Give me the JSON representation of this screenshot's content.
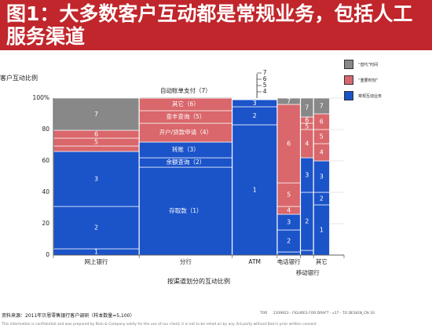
{
  "title": "图1：大多数客户互动都是常规业务，包括人工服务渠道",
  "footer": {
    "source": "资料来源：2011年贝恩零售银行客户调研（样本数量=5,100）",
    "draft_mark": "TOR",
    "draft_text": "1109923 - FIGURES FOR DRAFT - v17 - TO DESIGN_CN 10",
    "note": "This information is confidential and was prepared by Bain & Company solely for the use of our client; it is not to be relied on by any 3rd party without Bain's prior written consent"
  },
  "chart_data": {
    "type": "marimekko",
    "ylabel": "客户互动比例",
    "xlabel": "按渠道划分的互动比例",
    "yticks": [
      "0",
      "20",
      "40",
      "60",
      "80",
      "100%"
    ],
    "ylim": [
      0,
      100
    ],
    "grid": true,
    "legend": [
      {
        "label": "“替代”时间",
        "color": "#888888"
      },
      {
        "label": "“重要时刻”",
        "color": "#d9676b"
      },
      {
        "label": "常规互动业务",
        "color": "#1b53c9"
      }
    ],
    "segment_labels": {
      "1": "存取款（1）",
      "2": "余额查询（2）",
      "3": "转账（3）",
      "4": "开户/贷款申请（4）",
      "5": "查丰查询（5）",
      "6": "其它（6）",
      "7": "自动账单支付（7）"
    },
    "columns": [
      {
        "name": "网上银行",
        "width_pct": 29.5,
        "segments": [
          {
            "id": "1",
            "kind": "routine",
            "value": 4
          },
          {
            "id": "2",
            "kind": "routine",
            "value": 27
          },
          {
            "id": "3",
            "kind": "routine",
            "value": 35
          },
          {
            "id": "4",
            "kind": "moment",
            "value": 3.5
          },
          {
            "id": "5",
            "kind": "moment",
            "value": 5
          },
          {
            "id": "6",
            "kind": "moment",
            "value": 5
          },
          {
            "id": "7",
            "kind": "replace",
            "value": 20.5
          }
        ]
      },
      {
        "name": "分行",
        "width_pct": 32,
        "segments": [
          {
            "id": "1",
            "kind": "routine",
            "value": 56,
            "show_name": true
          },
          {
            "id": "2",
            "kind": "routine",
            "value": 6,
            "show_name": true
          },
          {
            "id": "3",
            "kind": "routine",
            "value": 10,
            "show_name": true
          },
          {
            "id": "4",
            "kind": "moment",
            "value": 12,
            "show_name": true
          },
          {
            "id": "5",
            "kind": "moment",
            "value": 8,
            "show_name": true
          },
          {
            "id": "6",
            "kind": "moment",
            "value": 8,
            "show_name": true
          },
          {
            "id": "7",
            "kind": "replace",
            "value": 0.5,
            "callout": "自动账单支付（7）"
          }
        ]
      },
      {
        "name": "ATM",
        "width_pct": 15.5,
        "segments": [
          {
            "id": "1",
            "kind": "routine",
            "value": 83
          },
          {
            "id": "2",
            "kind": "routine",
            "value": 11.5
          },
          {
            "id": "3",
            "kind": "routine",
            "value": 4.5
          },
          {
            "id": "4",
            "kind": "moment",
            "value": 0.25
          },
          {
            "id": "5",
            "kind": "moment",
            "value": 0.25
          },
          {
            "id": "6",
            "kind": "moment",
            "value": 0.25
          },
          {
            "id": "7",
            "kind": "replace",
            "value": 0.25
          }
        ]
      },
      {
        "name": "电话银行",
        "width_pct": 8,
        "segments": [
          {
            "id": "1",
            "kind": "routine",
            "value": 2
          },
          {
            "id": "2",
            "kind": "routine",
            "value": 14
          },
          {
            "id": "3",
            "kind": "routine",
            "value": 10
          },
          {
            "id": "4",
            "kind": "moment",
            "value": 5
          },
          {
            "id": "5",
            "kind": "moment",
            "value": 15
          },
          {
            "id": "6",
            "kind": "moment",
            "value": 50
          },
          {
            "id": "7",
            "kind": "replace",
            "value": 4
          }
        ]
      },
      {
        "name": "移动银行",
        "width_pct": 4.5,
        "segments": [
          {
            "id": "1",
            "kind": "routine",
            "value": 3
          },
          {
            "id": "2",
            "kind": "routine",
            "value": 37
          },
          {
            "id": "3",
            "kind": "routine",
            "value": 22
          },
          {
            "id": "4",
            "kind": "moment",
            "value": 18
          },
          {
            "id": "5",
            "kind": "moment",
            "value": 4
          },
          {
            "id": "6",
            "kind": "moment",
            "value": 4
          },
          {
            "id": "7",
            "kind": "replace",
            "value": 12
          }
        ]
      },
      {
        "name": "其它",
        "width_pct": 5.5,
        "segments": [
          {
            "id": "1",
            "kind": "routine",
            "value": 32
          },
          {
            "id": "2",
            "kind": "routine",
            "value": 8
          },
          {
            "id": "3",
            "kind": "routine",
            "value": 20
          },
          {
            "id": "4",
            "kind": "moment",
            "value": 11
          },
          {
            "id": "5",
            "kind": "moment",
            "value": 9
          },
          {
            "id": "6",
            "kind": "moment",
            "value": 10
          },
          {
            "id": "7",
            "kind": "replace",
            "value": 10
          }
        ]
      }
    ]
  }
}
